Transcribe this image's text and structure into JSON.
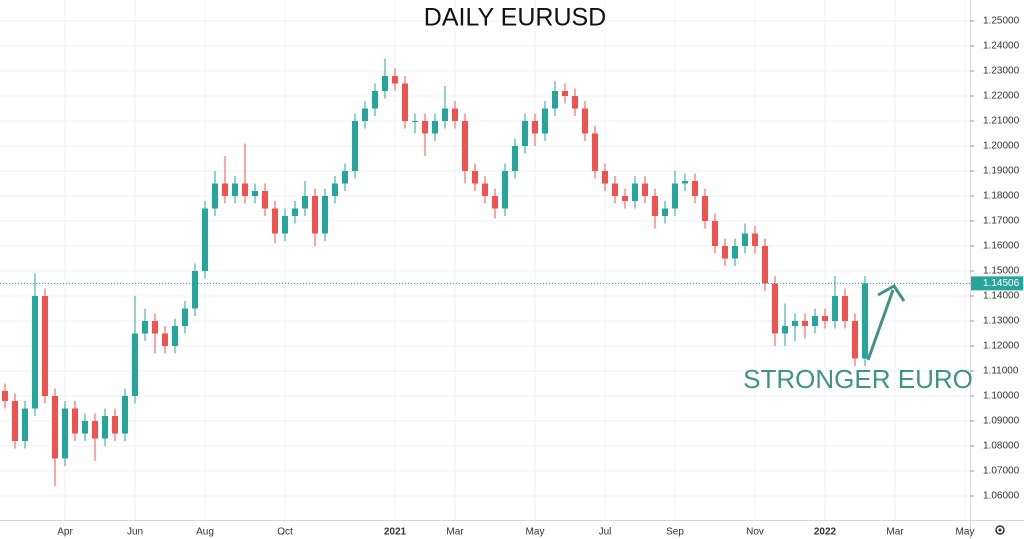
{
  "chart_data": {
    "type": "candlestick",
    "title": "DAILY EURUSD",
    "annotation": "STRONGER EURO",
    "current_price": {
      "value": 1.14506,
      "label": "1.14506"
    },
    "up_color": "#26a69a",
    "down_color": "#ef5350",
    "grid": true,
    "ylim": [
      1.0504,
      1.2584
    ],
    "yticks": [
      {
        "value": 1.06,
        "label": "1.06000"
      },
      {
        "value": 1.07,
        "label": "1.07000"
      },
      {
        "value": 1.08,
        "label": "1.08000"
      },
      {
        "value": 1.09,
        "label": "1.09000"
      },
      {
        "value": 1.1,
        "label": "1.10000"
      },
      {
        "value": 1.11,
        "label": "1.11000"
      },
      {
        "value": 1.12,
        "label": "1.12000"
      },
      {
        "value": 1.13,
        "label": "1.13000"
      },
      {
        "value": 1.14,
        "label": "1.14000"
      },
      {
        "value": 1.15,
        "label": "1.15000"
      },
      {
        "value": 1.16,
        "label": "1.16000"
      },
      {
        "value": 1.17,
        "label": "1.17000"
      },
      {
        "value": 1.18,
        "label": "1.18000"
      },
      {
        "value": 1.19,
        "label": "1.19000"
      },
      {
        "value": 1.2,
        "label": "1.20000"
      },
      {
        "value": 1.21,
        "label": "1.21000"
      },
      {
        "value": 1.22,
        "label": "1.22000"
      },
      {
        "value": 1.23,
        "label": "1.23000"
      },
      {
        "value": 1.24,
        "label": "1.24000"
      },
      {
        "value": 1.25,
        "label": "1.25000"
      }
    ],
    "categories": [
      null,
      null,
      null,
      null,
      null,
      null,
      "Apr",
      null,
      null,
      null,
      null,
      null,
      null,
      "Jun",
      null,
      null,
      null,
      null,
      null,
      null,
      "Aug",
      null,
      null,
      null,
      null,
      null,
      null,
      null,
      "Oct",
      null,
      null,
      null,
      null,
      null,
      null,
      null,
      null,
      null,
      null,
      "2021",
      null,
      null,
      null,
      null,
      null,
      "Mar",
      null,
      null,
      null,
      null,
      null,
      null,
      null,
      "May",
      null,
      null,
      null,
      null,
      null,
      null,
      "Jul",
      null,
      null,
      null,
      null,
      null,
      null,
      "Sep",
      null,
      null,
      null,
      null,
      null,
      null,
      null,
      "Nov",
      null,
      null,
      null,
      null,
      null,
      null,
      "2022",
      null,
      null,
      null,
      null,
      null,
      null,
      "Mar",
      null,
      null,
      null,
      null,
      null,
      null,
      "May"
    ],
    "open": [
      1.102,
      1.098,
      1.082,
      1.095,
      1.14,
      1.1,
      1.075,
      1.095,
      1.085,
      1.09,
      1.083,
      1.092,
      1.085,
      1.1,
      1.125,
      1.13,
      1.125,
      1.12,
      1.128,
      1.135,
      1.15,
      1.175,
      1.185,
      1.18,
      1.185,
      1.18,
      1.182,
      1.175,
      1.165,
      1.172,
      1.175,
      1.18,
      1.165,
      1.18,
      1.185,
      1.19,
      1.21,
      1.215,
      1.222,
      1.228,
      1.225,
      1.21,
      1.21,
      1.205,
      1.21,
      1.215,
      1.21,
      1.19,
      1.185,
      1.18,
      1.175,
      1.19,
      1.2,
      1.21,
      1.205,
      1.215,
      1.222,
      1.22,
      1.215,
      1.205,
      1.19,
      1.185,
      1.18,
      1.178,
      1.185,
      1.18,
      1.172,
      1.175,
      1.185,
      1.186,
      1.18,
      1.17,
      1.16,
      1.155,
      1.16,
      1.165,
      1.16,
      1.145,
      1.125,
      1.128,
      1.13,
      1.128,
      1.132,
      1.13,
      1.14,
      1.13,
      1.115,
      null,
      null,
      null,
      null,
      null,
      null,
      null,
      null,
      null,
      null
    ],
    "high": [
      1.105,
      1.101,
      1.098,
      1.149,
      1.143,
      1.103,
      1.098,
      1.098,
      1.093,
      1.093,
      1.095,
      1.095,
      1.103,
      1.14,
      1.135,
      1.133,
      1.128,
      1.131,
      1.138,
      1.153,
      1.178,
      1.19,
      1.196,
      1.188,
      1.201,
      1.185,
      1.185,
      1.178,
      1.175,
      1.178,
      1.186,
      1.183,
      1.183,
      1.188,
      1.193,
      1.213,
      1.218,
      1.225,
      1.235,
      1.231,
      1.228,
      1.213,
      1.213,
      1.213,
      1.224,
      1.218,
      1.213,
      1.193,
      1.188,
      1.183,
      1.193,
      1.203,
      1.213,
      1.213,
      1.218,
      1.226,
      1.225,
      1.223,
      1.218,
      1.208,
      1.193,
      1.188,
      1.183,
      1.188,
      1.188,
      1.183,
      1.178,
      1.19,
      1.189,
      1.189,
      1.183,
      1.173,
      1.163,
      1.163,
      1.169,
      1.168,
      1.163,
      1.148,
      1.137,
      1.133,
      1.133,
      1.135,
      1.135,
      1.148,
      1.143,
      1.133,
      1.148,
      null,
      null,
      null,
      null,
      null,
      null,
      null,
      null,
      null,
      null
    ],
    "low": [
      1.095,
      1.079,
      1.079,
      1.092,
      1.097,
      1.064,
      1.072,
      1.082,
      1.082,
      1.074,
      1.08,
      1.082,
      1.082,
      1.097,
      1.122,
      1.117,
      1.117,
      1.117,
      1.125,
      1.132,
      1.147,
      1.172,
      1.177,
      1.177,
      1.177,
      1.177,
      1.172,
      1.161,
      1.162,
      1.169,
      1.172,
      1.16,
      1.162,
      1.177,
      1.182,
      1.187,
      1.207,
      1.212,
      1.219,
      1.222,
      1.207,
      1.205,
      1.196,
      1.202,
      1.207,
      1.207,
      1.185,
      1.182,
      1.177,
      1.171,
      1.172,
      1.187,
      1.197,
      1.2,
      1.202,
      1.212,
      1.217,
      1.212,
      1.202,
      1.187,
      1.182,
      1.177,
      1.175,
      1.175,
      1.177,
      1.167,
      1.169,
      1.172,
      1.182,
      1.177,
      1.167,
      1.157,
      1.152,
      1.152,
      1.157,
      1.157,
      1.142,
      1.12,
      1.12,
      1.122,
      1.123,
      1.125,
      1.127,
      1.127,
      1.127,
      1.112,
      1.112,
      null,
      null,
      null,
      null,
      null,
      null,
      null,
      null,
      null,
      null
    ],
    "close": [
      1.098,
      1.082,
      1.095,
      1.14,
      1.1,
      1.075,
      1.095,
      1.085,
      1.09,
      1.083,
      1.092,
      1.085,
      1.1,
      1.125,
      1.13,
      1.125,
      1.12,
      1.128,
      1.135,
      1.15,
      1.175,
      1.185,
      1.18,
      1.185,
      1.18,
      1.182,
      1.175,
      1.165,
      1.172,
      1.175,
      1.18,
      1.165,
      1.18,
      1.185,
      1.19,
      1.21,
      1.215,
      1.222,
      1.228,
      1.225,
      1.21,
      1.21,
      1.205,
      1.21,
      1.215,
      1.21,
      1.19,
      1.185,
      1.18,
      1.175,
      1.19,
      1.2,
      1.21,
      1.205,
      1.215,
      1.222,
      1.22,
      1.215,
      1.205,
      1.19,
      1.185,
      1.18,
      1.178,
      1.185,
      1.18,
      1.172,
      1.175,
      1.185,
      1.186,
      1.18,
      1.17,
      1.16,
      1.155,
      1.16,
      1.165,
      1.16,
      1.145,
      1.125,
      1.128,
      1.13,
      1.128,
      1.132,
      1.13,
      1.14,
      1.13,
      1.115,
      1.1451,
      null,
      null,
      null,
      null,
      null,
      null,
      null,
      null,
      null,
      null
    ]
  }
}
